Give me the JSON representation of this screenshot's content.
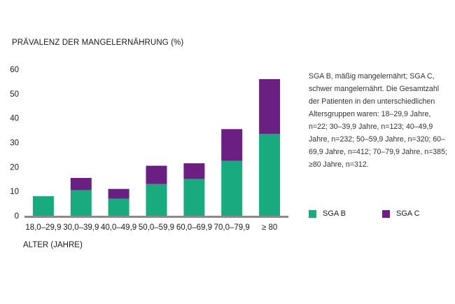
{
  "chart_data": {
    "type": "bar",
    "stacked": true,
    "title": "PRÄVALENZ DER MANGELERNÄHRUNG (%)",
    "xlabel": "ALTER (JAHRE)",
    "ylabel": "",
    "ylim": [
      0,
      60
    ],
    "yticks": [
      "0",
      "10",
      "20",
      "30",
      "40",
      "50",
      "60"
    ],
    "categories": [
      "18,0–29,9",
      "30,0–39,9",
      "40,0–49,9",
      "50,0–59,9",
      "60,0–69,9",
      "70,0–79,9",
      "≥ 80"
    ],
    "series": [
      {
        "name": "SGA B",
        "color": "#1aaa80",
        "values": [
          8,
          10.5,
          7,
          13,
          15,
          22.5,
          33.5
        ]
      },
      {
        "name": "SGA C",
        "color": "#6b1f82",
        "values": [
          0,
          5,
          4,
          7.5,
          6.5,
          13,
          22.5
        ]
      }
    ],
    "grid": false
  },
  "note": "SGA B, mäßig mangelernährt; SGA C, schwer mangelernährt. Die Gesamtzahl der Patienten in den unterschiedlichen Altersgruppen waren: 18–29,9 Jahre, n=22; 30–39,9 Jahre, n=123; 40–49,9 Jahre, n=232; 50–59,9 Jahre, n=320; 60–69,9 Jahre, n=412; 70–79,9 Jahre, n=385; ≥80 Jahre, n=312.",
  "legend": {
    "sga_b": "SGA B",
    "sga_c": "SGA C"
  },
  "colors": {
    "sga_b": "#1aaa80",
    "sga_c": "#6b1f82",
    "axis": "#8a8a8a"
  }
}
